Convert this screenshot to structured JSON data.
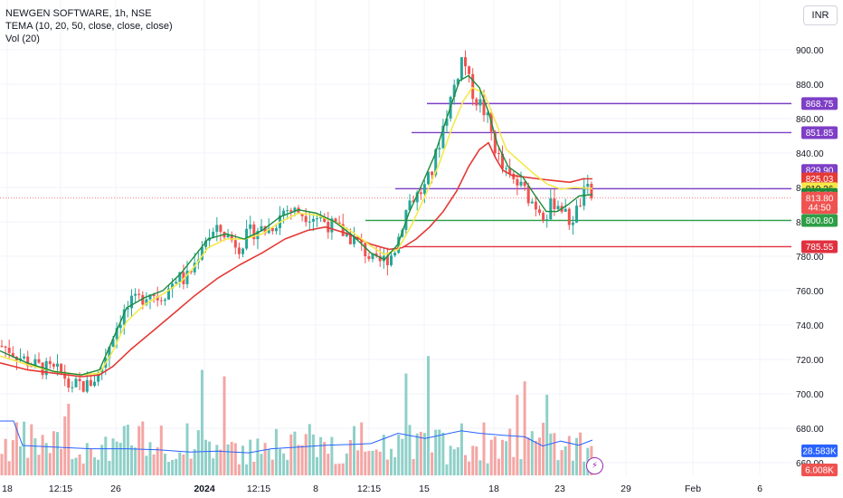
{
  "legend": {
    "title": "NEWGEN SOFTWARE, 1h, NSE",
    "indicator": "TEMA (10, 20, 50, close, close, close)",
    "volume": "Vol (20)"
  },
  "currency_button": "INR",
  "colors": {
    "up": "#26a69a",
    "down": "#ef5350",
    "up_vol": "#8fd0c8",
    "down_vol": "#f4a6a4",
    "tema_fast": "#1b8a3a",
    "tema_mid": "#f5e94a",
    "tema_slow": "#e53935",
    "vol_ma": "#2962ff",
    "purple": "#7e3fc6",
    "green": "#2e9e46",
    "red": "#e0313f"
  },
  "chart_data": {
    "type": "candlestick",
    "y_ticks": [
      "900.00",
      "880.00",
      "860.00",
      "840.00",
      "820.00",
      "800.00",
      "780.00",
      "760.00",
      "740.00",
      "720.00",
      "700.00",
      "680.00",
      "660.00"
    ],
    "y_tick_values": [
      900,
      880,
      860,
      840,
      820,
      800,
      780,
      760,
      740,
      720,
      700,
      680,
      660
    ],
    "x_ticks": [
      "18",
      "12:15",
      "26",
      "2024",
      "12:15",
      "8",
      "12:15",
      "15",
      "18",
      "23",
      "29",
      "Feb",
      "6"
    ],
    "ylim": [
      647,
      911
    ],
    "horizontal_lines": [
      {
        "price": 868.75,
        "label": "868.75",
        "color": "#7e3fc6"
      },
      {
        "price": 851.85,
        "label": "851.85",
        "color": "#7e3fc6"
      },
      {
        "price": 819.26,
        "label": "819.26",
        "color": "#7e3fc6"
      },
      {
        "price": 800.8,
        "label": "800.80",
        "color": "#2e9e46"
      },
      {
        "price": 785.55,
        "label": "785.55",
        "color": "#e0313f"
      }
    ],
    "price_tags": [
      {
        "label": "868.75",
        "price": 868.75,
        "bg": "#7e3fc6",
        "fg": "#ffffff"
      },
      {
        "label": "851.85",
        "price": 851.85,
        "bg": "#7e3fc6",
        "fg": "#ffffff"
      },
      {
        "label": "829.90",
        "price": 829.9,
        "bg": "#7e3fc6",
        "fg": "#ffffff"
      },
      {
        "label": "825.03",
        "price": 825.03,
        "bg": "#e53935",
        "fg": "#ffffff"
      },
      {
        "label": "819.26",
        "price": 819.26,
        "bg": "#f5e94a",
        "fg": "#131722"
      },
      {
        "label": "815.89",
        "price": 815.89,
        "bg": "#1b8a3a",
        "fg": "#ffffff"
      },
      {
        "label": "813.80",
        "price": 813.8,
        "bg": "#ef5350",
        "fg": "#ffffff"
      },
      {
        "label": "44:50",
        "price": 808.3,
        "bg": "#ef5350",
        "fg": "#ffffff"
      },
      {
        "label": "800.80",
        "price": 800.8,
        "bg": "#2e9e46",
        "fg": "#ffffff"
      },
      {
        "label": "785.55",
        "price": 785.55,
        "bg": "#e0313f",
        "fg": "#ffffff"
      },
      {
        "label": "28.583K",
        "price": 666.9,
        "bg": "#2962ff",
        "fg": "#ffffff"
      },
      {
        "label": "6.008K",
        "price": 655.8,
        "bg": "#ef5350",
        "fg": "#ffffff"
      }
    ],
    "current_price": 813.8,
    "anchors": [
      [
        0,
        728
      ],
      [
        10,
        726
      ],
      [
        20,
        722
      ],
      [
        30,
        719
      ],
      [
        40,
        716
      ],
      [
        55,
        714
      ],
      [
        70,
        712
      ],
      [
        80,
        700
      ],
      [
        85,
        706
      ],
      [
        95,
        704
      ],
      [
        110,
        712
      ],
      [
        125,
        735
      ],
      [
        135,
        746
      ],
      [
        145,
        752
      ],
      [
        155,
        755
      ],
      [
        165,
        760
      ],
      [
        175,
        756
      ],
      [
        185,
        760
      ],
      [
        195,
        768
      ],
      [
        205,
        766
      ],
      [
        215,
        775
      ],
      [
        225,
        790
      ],
      [
        235,
        793
      ],
      [
        245,
        795
      ],
      [
        255,
        790
      ],
      [
        265,
        786
      ],
      [
        275,
        793
      ],
      [
        285,
        796
      ],
      [
        295,
        795
      ],
      [
        305,
        800
      ],
      [
        315,
        808
      ],
      [
        325,
        806
      ],
      [
        335,
        805
      ],
      [
        345,
        804
      ],
      [
        355,
        802
      ],
      [
        365,
        798
      ],
      [
        375,
        795
      ],
      [
        385,
        792
      ],
      [
        395,
        788
      ],
      [
        405,
        782
      ],
      [
        415,
        775
      ],
      [
        425,
        778
      ],
      [
        435,
        782
      ],
      [
        440,
        790
      ],
      [
        445,
        800
      ],
      [
        452,
        812
      ],
      [
        460,
        815
      ],
      [
        470,
        820
      ],
      [
        478,
        830
      ],
      [
        485,
        845
      ],
      [
        492,
        860
      ],
      [
        500,
        875
      ],
      [
        508,
        890
      ],
      [
        512,
        898
      ],
      [
        518,
        882
      ],
      [
        525,
        872
      ],
      [
        532,
        868
      ],
      [
        540,
        858
      ],
      [
        548,
        842
      ],
      [
        556,
        830
      ],
      [
        564,
        825
      ],
      [
        572,
        822
      ],
      [
        580,
        818
      ],
      [
        588,
        812
      ],
      [
        596,
        808
      ],
      [
        604,
        804
      ],
      [
        612,
        812
      ],
      [
        620,
        810
      ],
      [
        628,
        800
      ],
      [
        636,
        804
      ],
      [
        644,
        815
      ],
      [
        650,
        818
      ],
      [
        655,
        813
      ]
    ],
    "tema_fast": [
      [
        0,
        725
      ],
      [
        30,
        718
      ],
      [
        60,
        713
      ],
      [
        90,
        711
      ],
      [
        110,
        714
      ],
      [
        125,
        732
      ],
      [
        140,
        750
      ],
      [
        160,
        756
      ],
      [
        180,
        760
      ],
      [
        200,
        770
      ],
      [
        215,
        780
      ],
      [
        230,
        790
      ],
      [
        250,
        793
      ],
      [
        270,
        790
      ],
      [
        290,
        795
      ],
      [
        310,
        803
      ],
      [
        330,
        807
      ],
      [
        350,
        805
      ],
      [
        370,
        800
      ],
      [
        390,
        792
      ],
      [
        410,
        782
      ],
      [
        425,
        778
      ],
      [
        440,
        787
      ],
      [
        452,
        805
      ],
      [
        465,
        820
      ],
      [
        480,
        838
      ],
      [
        495,
        862
      ],
      [
        508,
        882
      ],
      [
        518,
        885
      ],
      [
        530,
        878
      ],
      [
        540,
        864
      ],
      [
        550,
        845
      ],
      [
        562,
        832
      ],
      [
        578,
        826
      ],
      [
        592,
        815
      ],
      [
        604,
        806
      ],
      [
        616,
        806
      ],
      [
        628,
        810
      ],
      [
        640,
        815
      ],
      [
        655,
        815.9
      ]
    ],
    "tema_mid": [
      [
        0,
        722
      ],
      [
        30,
        717
      ],
      [
        60,
        713
      ],
      [
        90,
        711
      ],
      [
        110,
        712
      ],
      [
        125,
        725
      ],
      [
        140,
        742
      ],
      [
        160,
        752
      ],
      [
        180,
        758
      ],
      [
        200,
        765
      ],
      [
        215,
        774
      ],
      [
        230,
        785
      ],
      [
        250,
        790
      ],
      [
        270,
        790
      ],
      [
        290,
        793
      ],
      [
        310,
        800
      ],
      [
        330,
        805
      ],
      [
        350,
        804
      ],
      [
        370,
        800
      ],
      [
        390,
        794
      ],
      [
        410,
        786
      ],
      [
        425,
        781
      ],
      [
        440,
        784
      ],
      [
        455,
        798
      ],
      [
        470,
        815
      ],
      [
        485,
        833
      ],
      [
        500,
        855
      ],
      [
        512,
        870
      ],
      [
        522,
        878
      ],
      [
        535,
        875
      ],
      [
        548,
        858
      ],
      [
        560,
        842
      ],
      [
        575,
        835
      ],
      [
        590,
        828
      ],
      [
        605,
        822
      ],
      [
        620,
        819
      ],
      [
        635,
        820
      ],
      [
        655,
        819.3
      ]
    ],
    "tema_slow": [
      [
        0,
        718
      ],
      [
        30,
        714
      ],
      [
        60,
        712
      ],
      [
        90,
        710
      ],
      [
        110,
        711
      ],
      [
        125,
        716
      ],
      [
        145,
        726
      ],
      [
        170,
        737
      ],
      [
        195,
        748
      ],
      [
        215,
        757
      ],
      [
        240,
        767
      ],
      [
        265,
        775
      ],
      [
        290,
        782
      ],
      [
        315,
        790
      ],
      [
        340,
        795
      ],
      [
        360,
        797
      ],
      [
        385,
        793
      ],
      [
        410,
        787
      ],
      [
        430,
        784
      ],
      [
        445,
        785
      ],
      [
        460,
        790
      ],
      [
        475,
        797
      ],
      [
        490,
        806
      ],
      [
        505,
        818
      ],
      [
        518,
        832
      ],
      [
        530,
        842
      ],
      [
        540,
        846
      ],
      [
        548,
        837
      ],
      [
        556,
        830
      ],
      [
        566,
        827
      ],
      [
        580,
        826
      ],
      [
        595,
        825
      ],
      [
        612,
        824
      ],
      [
        630,
        823
      ],
      [
        645,
        825
      ],
      [
        655,
        825
      ]
    ],
    "volume": {
      "max": 28.583,
      "ma": [
        [
          0,
          20
        ],
        [
          15,
          20
        ],
        [
          25,
          11
        ],
        [
          60,
          10.4
        ],
        [
          100,
          9.8
        ],
        [
          140,
          9.8
        ],
        [
          175,
          9.4
        ],
        [
          210,
          8.6
        ],
        [
          240,
          8.9
        ],
        [
          275,
          8.3
        ],
        [
          300,
          9.8
        ],
        [
          330,
          10.4
        ],
        [
          360,
          11.1
        ],
        [
          390,
          11.4
        ],
        [
          410,
          11.7
        ],
        [
          430,
          14.2
        ],
        [
          440,
          15.5
        ],
        [
          470,
          13.6
        ],
        [
          490,
          15
        ],
        [
          510,
          16.4
        ],
        [
          530,
          15.5
        ],
        [
          555,
          14.8
        ],
        [
          580,
          14.2
        ],
        [
          600,
          10.8
        ],
        [
          620,
          12.6
        ],
        [
          640,
          11.1
        ],
        [
          655,
          13
        ]
      ],
      "x_start": 0,
      "x_end": 655
    }
  }
}
